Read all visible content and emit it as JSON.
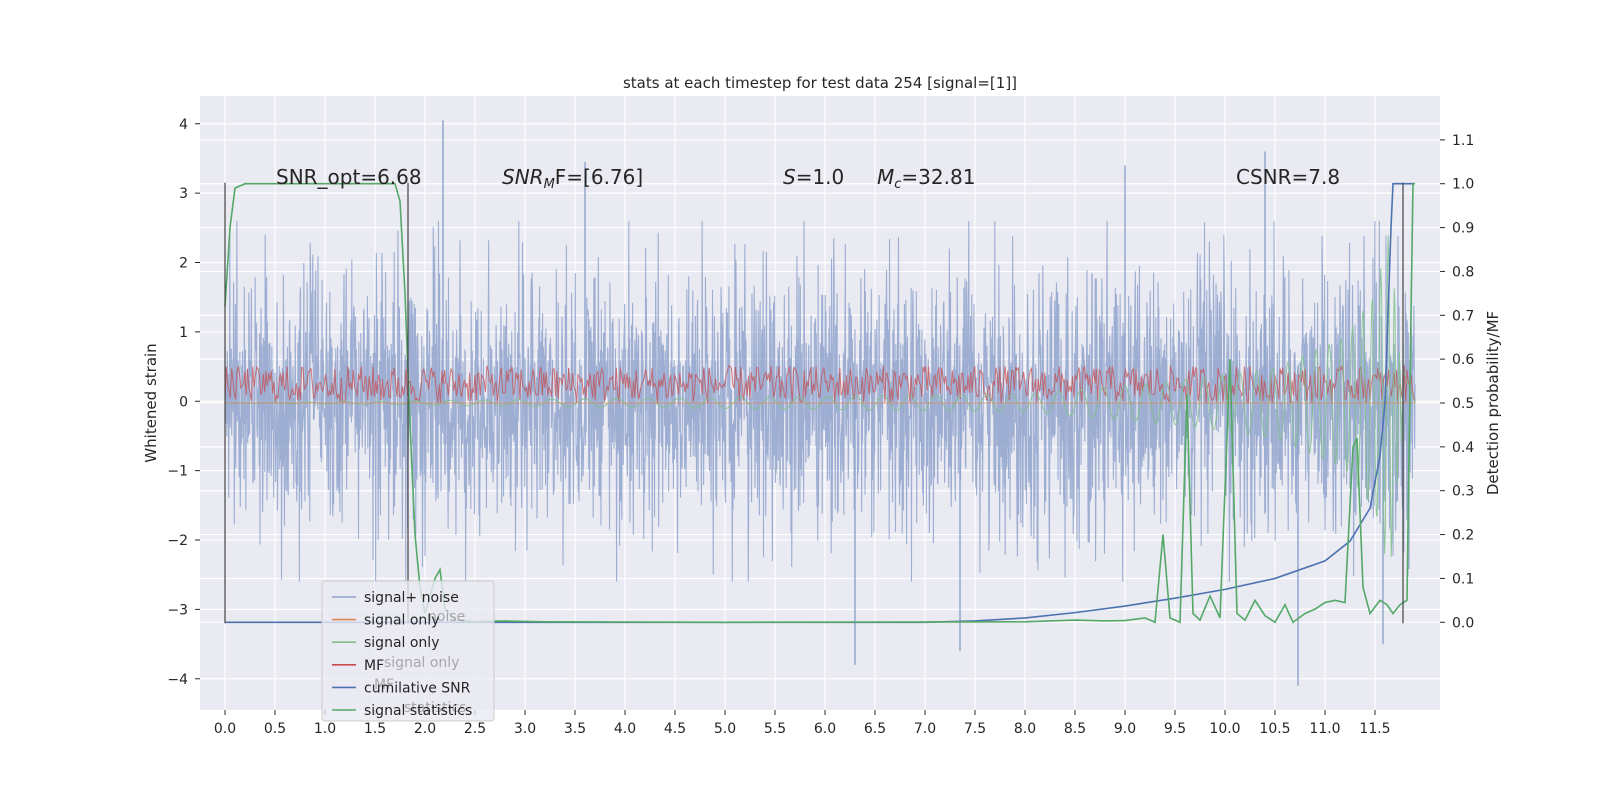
{
  "chart_data": {
    "type": "line",
    "title": "stats at each timestep for test data 254 [signal=[1]]",
    "ylabel_left": "Whitened strain",
    "ylabel_right": "Detection probability/MF",
    "xlim": [
      -0.25,
      12.15
    ],
    "ylim_left": [
      -4.45,
      4.4
    ],
    "ylim_right": [
      -0.2,
      1.2
    ],
    "x_ticks": [
      "0.0",
      "0.5",
      "1.0",
      "1.5",
      "2.0",
      "2.5",
      "3.0",
      "3.5",
      "4.0",
      "4.5",
      "5.0",
      "5.5",
      "6.0",
      "6.5",
      "7.0",
      "7.5",
      "8.0",
      "8.5",
      "9.0",
      "9.5",
      "10.0",
      "10.5",
      "11.0",
      "11.5"
    ],
    "y_ticks_left": [
      "−4",
      "−3",
      "−2",
      "−1",
      "0",
      "1",
      "2",
      "3",
      "4"
    ],
    "y_ticks_right": [
      "0.0",
      "0.1",
      "0.2",
      "0.3",
      "0.4",
      "0.5",
      "0.6",
      "0.7",
      "0.8",
      "0.9",
      "1.0",
      "1.1"
    ],
    "grid": true,
    "legend_position": "lower-left",
    "annotations": {
      "snr_opt": "SNR_opt=6.68",
      "snr_mf_sym": "SNR",
      "snr_mf_sub": "M",
      "snr_mf_tail": "F=[6.76]",
      "s_sym": "S",
      "s_tail": "=1.0",
      "mc_sym": "M",
      "mc_sub": "c",
      "mc_tail": "=32.81",
      "csnr": "CSNR=7.8"
    },
    "legend": [
      {
        "label": "signal+ noise",
        "color": "#8fa3cc"
      },
      {
        "label": "signal only",
        "color": "#dd8452"
      },
      {
        "label": "signal only",
        "color": "#7fbf8a"
      },
      {
        "label": "MF",
        "color": "#c44e52"
      },
      {
        "label": "cumilative SNR",
        "color": "#4c72b0"
      },
      {
        "label": "signal statistics",
        "color": "#55a868"
      }
    ],
    "legend_ghost": [
      {
        "label": "noise"
      },
      {
        "label": "signal only"
      },
      {
        "label": "MF"
      },
      {
        "label": "statistics"
      }
    ],
    "series": [
      {
        "name": "signal+ noise",
        "axis": "left",
        "render": "dense-noise",
        "x_range": [
          0,
          11.9
        ],
        "typical_amplitude": 2.3,
        "peak_values": [
          [
            2.18,
            4.05
          ],
          [
            3.6,
            3.45
          ],
          [
            10.4,
            3.6
          ],
          [
            9.0,
            3.4
          ],
          [
            6.3,
            -3.8
          ],
          [
            10.73,
            -4.1
          ],
          [
            11.58,
            -3.5
          ],
          [
            7.35,
            -3.6
          ]
        ]
      },
      {
        "name": "signal only",
        "axis": "right",
        "render": "chirp",
        "x_range": [
          0,
          11.9
        ],
        "envelope": [
          [
            0,
            0.0
          ],
          [
            8.0,
            0.02
          ],
          [
            9.5,
            0.05
          ],
          [
            10.5,
            0.08
          ],
          [
            11.2,
            0.15
          ],
          [
            11.5,
            0.25
          ],
          [
            11.65,
            0.4
          ],
          [
            11.75,
            0.1
          ],
          [
            11.9,
            0.0
          ]
        ]
      },
      {
        "name": "MF",
        "axis": "right",
        "render": "band",
        "x_range": [
          0,
          11.9
        ],
        "band": [
          0.5,
          0.585
        ]
      },
      {
        "name": "cumilative SNR",
        "axis": "right",
        "points": [
          [
            0.0,
            0.0
          ],
          [
            7.0,
            0.0
          ],
          [
            7.5,
            0.003
          ],
          [
            8.0,
            0.01
          ],
          [
            8.5,
            0.022
          ],
          [
            9.0,
            0.037
          ],
          [
            9.5,
            0.055
          ],
          [
            10.0,
            0.075
          ],
          [
            10.5,
            0.1
          ],
          [
            11.0,
            0.14
          ],
          [
            11.25,
            0.185
          ],
          [
            11.45,
            0.26
          ],
          [
            11.55,
            0.38
          ],
          [
            11.6,
            0.5
          ],
          [
            11.63,
            0.7
          ],
          [
            11.66,
            0.9
          ],
          [
            11.68,
            1.0
          ],
          [
            11.9,
            1.0
          ]
        ]
      },
      {
        "name": "signal statistics",
        "axis": "right",
        "points": [
          [
            0.0,
            0.72
          ],
          [
            0.05,
            0.9
          ],
          [
            0.1,
            0.99
          ],
          [
            0.2,
            1.0
          ],
          [
            1.7,
            1.0
          ],
          [
            1.75,
            0.96
          ],
          [
            1.8,
            0.75
          ],
          [
            1.85,
            0.45
          ],
          [
            1.9,
            0.2
          ],
          [
            1.95,
            0.08
          ],
          [
            2.0,
            0.02
          ],
          [
            2.1,
            0.1
          ],
          [
            2.15,
            0.12
          ],
          [
            2.2,
            0.03
          ],
          [
            2.3,
            0.005
          ],
          [
            2.5,
            0.002
          ],
          [
            2.8,
            0.003
          ],
          [
            3.2,
            0.001
          ],
          [
            5.0,
            0.0
          ],
          [
            8.0,
            0.001
          ],
          [
            8.5,
            0.005
          ],
          [
            8.8,
            0.003
          ],
          [
            9.0,
            0.004
          ],
          [
            9.2,
            0.01
          ],
          [
            9.3,
            0.0
          ],
          [
            9.38,
            0.2
          ],
          [
            9.45,
            0.01
          ],
          [
            9.55,
            0.0
          ],
          [
            9.62,
            0.52
          ],
          [
            9.68,
            0.02
          ],
          [
            9.75,
            0.005
          ],
          [
            9.85,
            0.06
          ],
          [
            9.95,
            0.01
          ],
          [
            10.05,
            0.6
          ],
          [
            10.12,
            0.02
          ],
          [
            10.2,
            0.005
          ],
          [
            10.3,
            0.05
          ],
          [
            10.4,
            0.015
          ],
          [
            10.5,
            0.0
          ],
          [
            10.6,
            0.04
          ],
          [
            10.68,
            0.0
          ],
          [
            10.8,
            0.02
          ],
          [
            10.9,
            0.03
          ],
          [
            11.0,
            0.045
          ],
          [
            11.1,
            0.05
          ],
          [
            11.2,
            0.045
          ],
          [
            11.28,
            0.4
          ],
          [
            11.32,
            0.42
          ],
          [
            11.38,
            0.08
          ],
          [
            11.45,
            0.02
          ],
          [
            11.55,
            0.05
          ],
          [
            11.62,
            0.04
          ],
          [
            11.68,
            0.02
          ],
          [
            11.75,
            0.04
          ],
          [
            11.82,
            0.05
          ],
          [
            11.86,
            0.7
          ],
          [
            11.88,
            1.0
          ],
          [
            11.9,
            1.0
          ]
        ]
      }
    ],
    "vertical_markers_x": [
      0.0,
      1.83,
      11.78
    ]
  }
}
